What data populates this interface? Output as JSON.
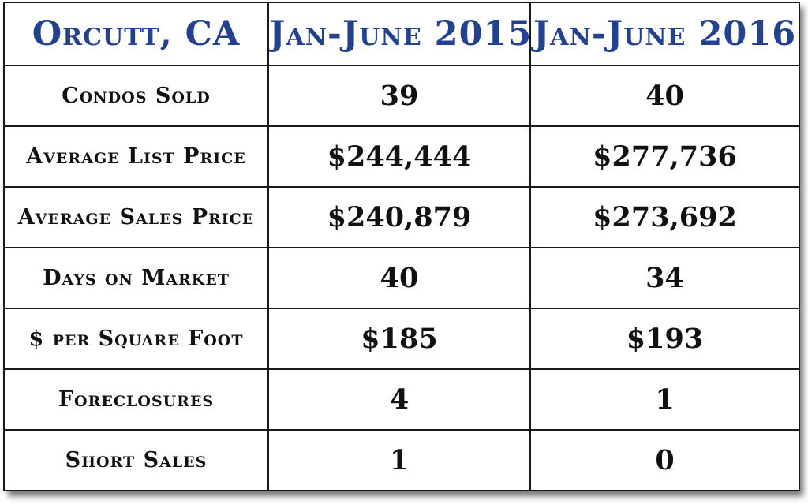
{
  "chart_data": {
    "type": "table",
    "columns": [
      "Orcutt, CA",
      "Jan-June 2015",
      "Jan-June 2016"
    ],
    "rows": [
      {
        "label": "Condos Sold",
        "values": [
          "39",
          "40"
        ]
      },
      {
        "label": "Average List Price",
        "values": [
          "$244,444",
          "$277,736"
        ]
      },
      {
        "label": "Average Sales Price",
        "values": [
          "$240,879",
          "$273,692"
        ]
      },
      {
        "label": "Days on Market",
        "values": [
          "40",
          "34"
        ]
      },
      {
        "label": "$ per Square Foot",
        "values": [
          "$185",
          "$193"
        ]
      },
      {
        "label": "Foreclosures",
        "values": [
          "4",
          "1"
        ]
      },
      {
        "label": "Short Sales",
        "values": [
          "1",
          "0"
        ]
      }
    ]
  },
  "colors": {
    "header_text": "#22418f",
    "body_text": "#111111",
    "grid": "#1a1a1a",
    "background": "#ffffff"
  }
}
